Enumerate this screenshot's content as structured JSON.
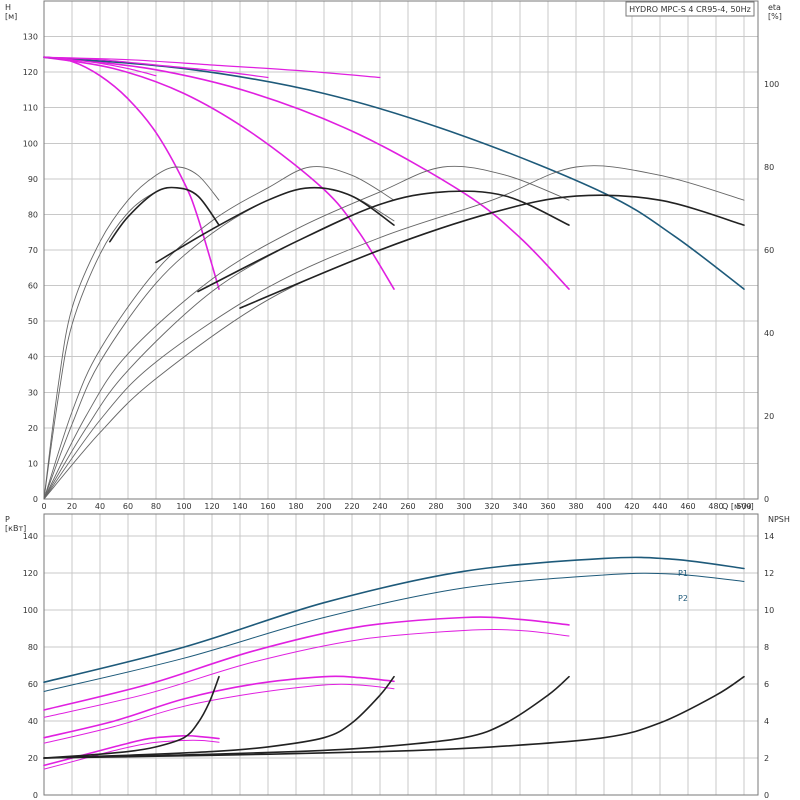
{
  "chart_data": [
    {
      "type": "line",
      "title": "HYDRO MPC-S 4 CR95-4, 50Hz",
      "xlabel": "Q [м³/ч]",
      "ylabel": "H [м]",
      "y2label": "eta [%]",
      "xlim": [
        0,
        510
      ],
      "ylim": [
        0,
        140
      ],
      "y2lim": [
        0,
        120
      ],
      "xticks": [
        0,
        20,
        40,
        60,
        80,
        100,
        120,
        140,
        160,
        180,
        200,
        220,
        240,
        260,
        280,
        300,
        320,
        340,
        360,
        380,
        400,
        420,
        440,
        460,
        480,
        500
      ],
      "yticks": [
        0,
        10,
        20,
        30,
        40,
        50,
        60,
        70,
        80,
        90,
        100,
        110,
        120,
        130
      ],
      "y2ticks": [
        0,
        20,
        40,
        60,
        80,
        100
      ],
      "grid": true,
      "series": [
        {
          "group": "head",
          "pumps": 1,
          "color": "#e020e0",
          "axis": "y",
          "x": [
            0,
            20,
            40,
            60,
            80,
            100,
            110,
            125
          ],
          "y": [
            124.2,
            123.0,
            119.0,
            112.5,
            103.0,
            89.0,
            79.0,
            59.0
          ]
        },
        {
          "group": "head",
          "pumps": 2,
          "color": "#e020e0",
          "axis": "y",
          "x": [
            0,
            50,
            100,
            150,
            200,
            225,
            250
          ],
          "y": [
            124.2,
            121.0,
            114.0,
            102.5,
            87.0,
            75.0,
            59.0
          ]
        },
        {
          "group": "head",
          "pumps": 3,
          "color": "#e020e0",
          "axis": "y",
          "x": [
            0,
            75,
            150,
            225,
            300,
            340,
            375
          ],
          "y": [
            124.2,
            121.0,
            114.0,
            102.5,
            86.0,
            73.5,
            59.0
          ]
        },
        {
          "group": "head",
          "pumps": 4,
          "color": "#1e5a7a",
          "axis": "y",
          "x": [
            0,
            100,
            200,
            300,
            400,
            450,
            500
          ],
          "y": [
            124.2,
            121.0,
            114.0,
            102.0,
            86.0,
            74.0,
            59.0
          ]
        },
        {
          "group": "head",
          "pumps": 1,
          "color": "#e020e0",
          "axis": "y",
          "x": [
            0,
            20,
            40,
            60,
            80
          ],
          "y": [
            124.2,
            123.5,
            122.5,
            121.0,
            119.0
          ]
        },
        {
          "group": "head",
          "pumps": 2,
          "color": "#e020e0",
          "axis": "y",
          "x": [
            0,
            40,
            80,
            120,
            160
          ],
          "y": [
            124.2,
            123.5,
            122.0,
            120.5,
            118.5
          ]
        },
        {
          "group": "head",
          "pumps": 3,
          "color": "#e020e0",
          "axis": "y",
          "x": [
            0,
            60,
            120,
            180,
            240
          ],
          "y": [
            124.2,
            123.5,
            122.0,
            120.5,
            118.5
          ]
        },
        {
          "group": "eta",
          "pumps": 1,
          "color": "#666666",
          "axis": "y2",
          "x": [
            0,
            10,
            20,
            40,
            60,
            80,
            95,
            110,
            125
          ],
          "y": [
            0,
            24,
            42,
            59,
            69,
            74,
            75,
            73,
            66
          ]
        },
        {
          "group": "eta",
          "pumps": 1,
          "color": "#666666",
          "axis": "y2",
          "x": [
            0,
            10,
            20,
            40,
            60,
            80,
            95,
            110,
            125
          ],
          "y": [
            0,
            27,
            46,
            62,
            72,
            78,
            80,
            78,
            72
          ]
        },
        {
          "group": "eta",
          "pumps": 2,
          "color": "#666666",
          "axis": "y2",
          "x": [
            0,
            20,
            40,
            80,
            120,
            160,
            190,
            220,
            250
          ],
          "y": [
            0,
            18,
            33,
            52,
            64,
            72,
            75,
            73,
            67
          ]
        },
        {
          "group": "eta",
          "pumps": 2,
          "color": "#666666",
          "axis": "y2",
          "x": [
            0,
            20,
            40,
            80,
            120,
            160,
            190,
            220,
            250
          ],
          "y": [
            0,
            21,
            36,
            55,
            67,
            75,
            80,
            78,
            72
          ]
        },
        {
          "group": "eta",
          "pumps": 3,
          "color": "#666666",
          "axis": "y2",
          "x": [
            0,
            30,
            60,
            120,
            180,
            240,
            285,
            330,
            375
          ],
          "y": [
            0,
            17,
            31,
            50,
            62,
            71,
            74,
            73,
            66
          ]
        },
        {
          "group": "eta",
          "pumps": 3,
          "color": "#666666",
          "axis": "y2",
          "x": [
            0,
            30,
            60,
            120,
            180,
            240,
            285,
            330,
            375
          ],
          "y": [
            0,
            20,
            35,
            53,
            65,
            74,
            80,
            78,
            72
          ]
        },
        {
          "group": "eta",
          "pumps": 4,
          "color": "#666666",
          "axis": "y2",
          "x": [
            0,
            40,
            80,
            160,
            240,
            320,
            380,
            440,
            500
          ],
          "y": [
            0,
            16,
            29,
            48,
            60,
            69,
            73,
            72,
            66
          ]
        },
        {
          "group": "eta",
          "pumps": 4,
          "color": "#666666",
          "axis": "y2",
          "x": [
            0,
            40,
            80,
            160,
            240,
            320,
            380,
            440,
            500
          ],
          "y": [
            0,
            19,
            33,
            51,
            63,
            72,
            80,
            78,
            72
          ]
        },
        {
          "group": "eta_dark",
          "pumps": 1,
          "color": "#222222",
          "axis": "y2",
          "x": [
            47,
            60,
            80,
            95,
            110,
            125
          ],
          "y": [
            62,
            68,
            74,
            75,
            73,
            66
          ]
        },
        {
          "group": "eta_dark",
          "pumps": 2,
          "color": "#222222",
          "axis": "y2",
          "x": [
            80,
            120,
            160,
            190,
            220,
            250
          ],
          "y": [
            57,
            65,
            72,
            75,
            73,
            66
          ]
        },
        {
          "group": "eta_dark",
          "pumps": 3,
          "color": "#222222",
          "axis": "y2",
          "x": [
            110,
            180,
            240,
            285,
            330,
            375
          ],
          "y": [
            50,
            62,
            71,
            74,
            73,
            66
          ]
        },
        {
          "group": "eta_dark",
          "pumps": 4,
          "color": "#222222",
          "axis": "y2",
          "x": [
            140,
            240,
            320,
            380,
            440,
            500
          ],
          "y": [
            46,
            60,
            69,
            73,
            72,
            66
          ]
        }
      ]
    },
    {
      "type": "line",
      "xlabel": "Q [м³/ч]",
      "ylabel": "P [кВт]",
      "y2label": "NPSH",
      "xlim": [
        0,
        510
      ],
      "ylim": [
        0,
        152
      ],
      "y2lim": [
        0,
        15.2
      ],
      "xticks": [
        0,
        20,
        40,
        60,
        80,
        100,
        120,
        140,
        160,
        180,
        200,
        220,
        240,
        260,
        280,
        300,
        320,
        340,
        360,
        380,
        400,
        420,
        440,
        460,
        480,
        500
      ],
      "yticks": [
        0,
        20,
        40,
        60,
        80,
        100,
        120,
        140
      ],
      "y2ticks": [
        0,
        2,
        4,
        6,
        8,
        10,
        12,
        14
      ],
      "labels": {
        "p1": "P1",
        "p2": "P2"
      },
      "series": [
        {
          "name": "P1",
          "group": "power",
          "pumps": 4,
          "color": "#1e5a7a",
          "axis": "y",
          "x": [
            0,
            100,
            200,
            300,
            400,
            450,
            500
          ],
          "y": [
            61,
            80,
            104,
            121,
            128,
            127.5,
            122.5
          ]
        },
        {
          "name": "P2",
          "group": "power",
          "pumps": 4,
          "color": "#1e5a7a",
          "axis": "y",
          "x": [
            0,
            100,
            200,
            300,
            400,
            450,
            500
          ],
          "y": [
            56,
            74,
            96,
            112,
            119,
            119.5,
            115.5
          ]
        },
        {
          "group": "power",
          "pumps": 3,
          "color": "#e020e0",
          "axis": "y",
          "x": [
            0,
            75,
            150,
            225,
            300,
            340,
            375
          ],
          "y": [
            46,
            60,
            78,
            91,
            96,
            95,
            92
          ]
        },
        {
          "group": "power",
          "pumps": 3,
          "color": "#e020e0",
          "axis": "y",
          "x": [
            0,
            75,
            150,
            225,
            300,
            340,
            375
          ],
          "y": [
            42,
            55,
            72,
            84,
            89,
            89,
            86
          ]
        },
        {
          "group": "power",
          "pumps": 2,
          "color": "#e020e0",
          "axis": "y",
          "x": [
            0,
            50,
            100,
            150,
            200,
            225,
            250
          ],
          "y": [
            31,
            40,
            52,
            60,
            64,
            63.5,
            61.5
          ]
        },
        {
          "group": "power",
          "pumps": 2,
          "color": "#e020e0",
          "axis": "y",
          "x": [
            0,
            50,
            100,
            150,
            200,
            225,
            250
          ],
          "y": [
            28,
            37,
            48,
            55,
            59.5,
            59.5,
            57.5
          ]
        },
        {
          "group": "power",
          "pumps": 1,
          "color": "#e020e0",
          "axis": "y",
          "x": [
            0,
            25,
            50,
            75,
            100,
            113,
            125
          ],
          "y": [
            16,
            21,
            26,
            30.5,
            32,
            31.5,
            30.5
          ]
        },
        {
          "group": "power",
          "pumps": 1,
          "color": "#e020e0",
          "axis": "y",
          "x": [
            0,
            25,
            50,
            75,
            100,
            113,
            125
          ],
          "y": [
            14,
            19,
            24,
            28,
            29.5,
            29.5,
            28.5
          ]
        },
        {
          "group": "npsh",
          "pumps": 1,
          "color": "#222222",
          "axis": "y2",
          "x": [
            0,
            30,
            60,
            80,
            100,
            110,
            118,
            125
          ],
          "y": [
            2.0,
            2.15,
            2.35,
            2.6,
            3.1,
            3.9,
            5.0,
            6.4
          ]
        },
        {
          "group": "npsh",
          "pumps": 2,
          "color": "#222222",
          "axis": "y2",
          "x": [
            0,
            60,
            120,
            160,
            200,
            220,
            240,
            250
          ],
          "y": [
            2.0,
            2.15,
            2.35,
            2.6,
            3.1,
            3.9,
            5.4,
            6.4
          ]
        },
        {
          "group": "npsh",
          "pumps": 3,
          "color": "#222222",
          "axis": "y2",
          "x": [
            0,
            90,
            180,
            240,
            300,
            330,
            360,
            375
          ],
          "y": [
            2.0,
            2.15,
            2.35,
            2.6,
            3.1,
            3.9,
            5.4,
            6.4
          ]
        },
        {
          "group": "npsh",
          "pumps": 4,
          "color": "#222222",
          "axis": "y2",
          "x": [
            0,
            120,
            240,
            320,
            400,
            440,
            480,
            500
          ],
          "y": [
            2.0,
            2.15,
            2.35,
            2.6,
            3.1,
            3.9,
            5.4,
            6.4
          ]
        }
      ]
    }
  ]
}
